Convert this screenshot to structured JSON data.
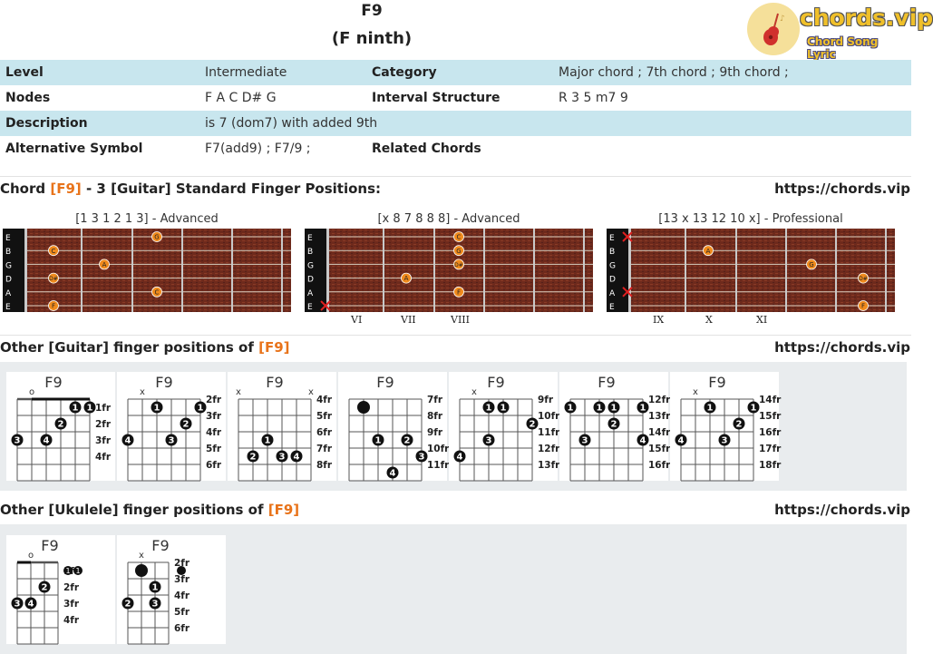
{
  "header": {
    "title": "F9",
    "subtitle": "(F ninth)",
    "logo_text": "chords.vip",
    "logo_sub": "Chord Song Lyric",
    "logo_icon": "guitar-icon"
  },
  "info": {
    "rows": [
      {
        "label": "Level",
        "value": "Intermediate",
        "label2": "Category",
        "value2": "Major chord ; 7th chord ; 9th chord ;"
      },
      {
        "label": "Nodes",
        "value": "F A C D# G",
        "label2": "Interval Structure",
        "value2": "R 3 5 m7 9"
      },
      {
        "label": "Description",
        "value": "is 7 (dom7) with added 9th",
        "label2": "",
        "value2": ""
      },
      {
        "label": "Alternative Symbol",
        "value": "F7(add9) ; F7/9 ;",
        "label2": "Related Chords",
        "value2": ""
      }
    ]
  },
  "standard": {
    "prefix": "Chord ",
    "chord": "[F9]",
    "suffix": " - 3 [Guitar] Standard Finger Positions:",
    "url": "https://chords.vip",
    "string_names": [
      "E",
      "B",
      "G",
      "D",
      "A",
      "E"
    ],
    "positions": [
      {
        "caption": "[1 3 1 2 1 3] - Advanced",
        "roman": [],
        "notes": [
          {
            "string": 0,
            "fret": 3,
            "label": "G"
          },
          {
            "string": 1,
            "fret": 1,
            "label": "C"
          },
          {
            "string": 2,
            "fret": 2,
            "label": "A"
          },
          {
            "string": 3,
            "fret": 1,
            "label": "D#"
          },
          {
            "string": 4,
            "fret": 3,
            "label": "C"
          },
          {
            "string": 5,
            "fret": 1,
            "label": "F"
          }
        ],
        "muted": []
      },
      {
        "caption": "[x 8 7 8 8 8] - Advanced",
        "roman": [
          "VI",
          "VII",
          "VIII"
        ],
        "notes": [
          {
            "string": 0,
            "fret": 3,
            "label": "C"
          },
          {
            "string": 1,
            "fret": 3,
            "label": "G"
          },
          {
            "string": 2,
            "fret": 3,
            "label": "D#"
          },
          {
            "string": 3,
            "fret": 2,
            "label": "A"
          },
          {
            "string": 4,
            "fret": 3,
            "label": "F"
          }
        ],
        "muted": [
          5
        ]
      },
      {
        "caption": "[13 x 13 12 10 x] - Professional",
        "roman": [
          "IX",
          "X",
          "XI"
        ],
        "notes": [
          {
            "string": 1,
            "fret": 2,
            "label": "A"
          },
          {
            "string": 2,
            "fret": 4,
            "label": "G"
          },
          {
            "string": 3,
            "fret": 5,
            "label": "D#"
          },
          {
            "string": 5,
            "fret": 5,
            "label": "F"
          }
        ],
        "muted": [
          0,
          4
        ]
      }
    ]
  },
  "guitar": {
    "prefix": "Other [Guitar] finger positions of ",
    "chord": "[F9]",
    "url": "https://chords.vip",
    "diagrams": [
      {
        "name": "F9",
        "frets": [
          "1fr",
          "2fr",
          "3fr",
          "4fr"
        ],
        "marks": [
          "",
          "o",
          "",
          "",
          "",
          ""
        ],
        "barre": {
          "fret": 1,
          "from": 1,
          "to": 5
        },
        "dots": [
          {
            "s": 4,
            "f": 1,
            "n": "1"
          },
          {
            "s": 5,
            "f": 1,
            "n": "1"
          },
          {
            "s": 3,
            "f": 2,
            "n": "2"
          },
          {
            "s": 0,
            "f": 3,
            "n": "3"
          },
          {
            "s": 2,
            "f": 3,
            "n": "4"
          }
        ]
      },
      {
        "name": "F9",
        "frets": [
          "2fr",
          "3fr",
          "4fr",
          "5fr",
          "6fr"
        ],
        "marks": [
          "",
          "x",
          "",
          "",
          "",
          ""
        ],
        "barre": null,
        "dots": [
          {
            "s": 2,
            "f": 1,
            "n": "1"
          },
          {
            "s": 5,
            "f": 1,
            "n": "1"
          },
          {
            "s": 4,
            "f": 2,
            "n": "2"
          },
          {
            "s": 0,
            "f": 3,
            "n": "4"
          },
          {
            "s": 3,
            "f": 3,
            "n": "3"
          }
        ]
      },
      {
        "name": "F9",
        "frets": [
          "4fr",
          "5fr",
          "6fr",
          "7fr",
          "8fr"
        ],
        "marks": [
          "x",
          "",
          "",
          "",
          "",
          "x"
        ],
        "barre": null,
        "dots": [
          {
            "s": 2,
            "f": 3,
            "n": "1"
          },
          {
            "s": 1,
            "f": 4,
            "n": "2"
          },
          {
            "s": 3,
            "f": 4,
            "n": "3"
          },
          {
            "s": 4,
            "f": 4,
            "n": "4"
          }
        ]
      },
      {
        "name": "F9",
        "frets": [
          "7fr",
          "8fr",
          "9fr",
          "10fr",
          "11fr"
        ],
        "marks": [
          "",
          "",
          "",
          "",
          "",
          ""
        ],
        "barre": null,
        "dots": [
          {
            "s": 1,
            "f": 1,
            "n": ""
          },
          {
            "s": 2,
            "f": 3,
            "n": "1"
          },
          {
            "s": 4,
            "f": 3,
            "n": "2"
          },
          {
            "s": 5,
            "f": 4,
            "n": "3"
          },
          {
            "s": 3,
            "f": 5,
            "n": "4"
          }
        ]
      },
      {
        "name": "F9",
        "frets": [
          "9fr",
          "10fr",
          "11fr",
          "12fr",
          "13fr"
        ],
        "marks": [
          "",
          "x",
          "",
          "",
          "",
          ""
        ],
        "barre": null,
        "dots": [
          {
            "s": 2,
            "f": 1,
            "n": "1"
          },
          {
            "s": 3,
            "f": 1,
            "n": "1"
          },
          {
            "s": 5,
            "f": 2,
            "n": "2"
          },
          {
            "s": 2,
            "f": 3,
            "n": "3"
          },
          {
            "s": 0,
            "f": 4,
            "n": "4"
          }
        ]
      },
      {
        "name": "F9",
        "frets": [
          "12fr",
          "13fr",
          "14fr",
          "15fr",
          "16fr"
        ],
        "marks": [
          "",
          "",
          "",
          "",
          "",
          ""
        ],
        "barre": null,
        "dots": [
          {
            "s": 0,
            "f": 1,
            "n": "1"
          },
          {
            "s": 2,
            "f": 1,
            "n": "1"
          },
          {
            "s": 3,
            "f": 1,
            "n": "1"
          },
          {
            "s": 5,
            "f": 1,
            "n": "1"
          },
          {
            "s": 3,
            "f": 2,
            "n": "2"
          },
          {
            "s": 1,
            "f": 3,
            "n": "3"
          },
          {
            "s": 5,
            "f": 3,
            "n": "4"
          }
        ]
      },
      {
        "name": "F9",
        "frets": [
          "14fr",
          "15fr",
          "16fr",
          "17fr",
          "18fr"
        ],
        "marks": [
          "",
          "x",
          "",
          "",
          "",
          ""
        ],
        "barre": null,
        "dots": [
          {
            "s": 2,
            "f": 1,
            "n": "1"
          },
          {
            "s": 5,
            "f": 1,
            "n": "1"
          },
          {
            "s": 4,
            "f": 2,
            "n": "2"
          },
          {
            "s": 0,
            "f": 3,
            "n": "4"
          },
          {
            "s": 3,
            "f": 3,
            "n": "3"
          }
        ]
      }
    ]
  },
  "ukulele": {
    "prefix": "Other [Ukulele] finger positions of ",
    "chord": "[F9]",
    "url": "https://chords.vip",
    "diagrams": [
      {
        "name": "F9",
        "frets": [
          "1fr",
          "2fr",
          "3fr",
          "4fr"
        ],
        "marks": [
          "",
          "o",
          "",
          ""
        ],
        "barre": {
          "fret": 1,
          "from": 0,
          "to": 1
        },
        "dots": [
          {
            "s": 2,
            "f": 2,
            "n": "2"
          },
          {
            "s": 0,
            "f": 3,
            "n": "3"
          },
          {
            "s": 1,
            "f": 3,
            "n": "4"
          }
        ],
        "outside": [
          "1",
          "1"
        ]
      },
      {
        "name": "F9",
        "frets": [
          "2fr",
          "3fr",
          "4fr",
          "5fr",
          "6fr"
        ],
        "marks": [
          "",
          "x",
          "",
          ""
        ],
        "barre": null,
        "dots": [
          {
            "s": 1,
            "f": 1,
            "n": ""
          },
          {
            "s": 2,
            "f": 2,
            "n": "1"
          },
          {
            "s": 0,
            "f": 3,
            "n": "2"
          },
          {
            "s": 2,
            "f": 3,
            "n": "3"
          }
        ],
        "outside": [
          ""
        ]
      }
    ]
  }
}
